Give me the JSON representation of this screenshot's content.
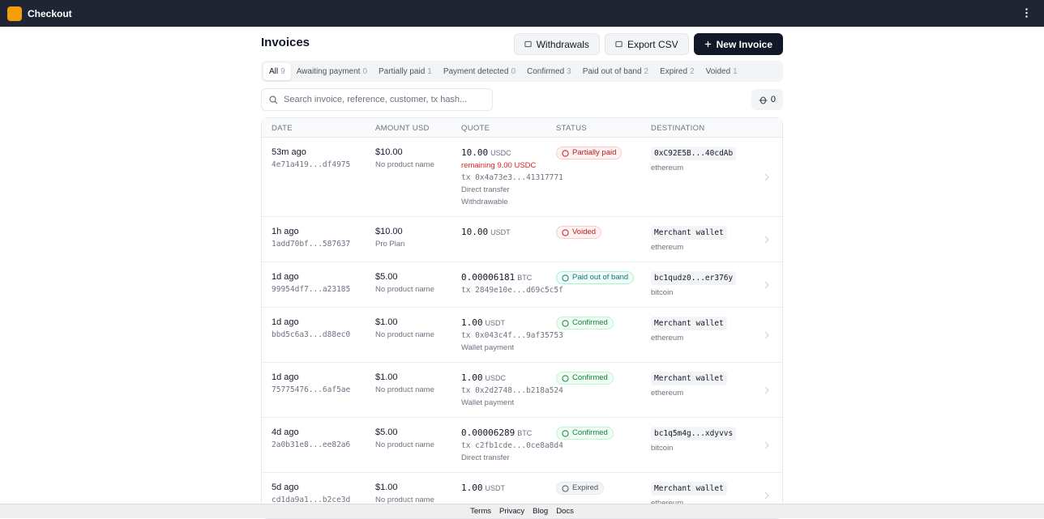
{
  "app": {
    "name": "Checkout"
  },
  "page": {
    "title": "Invoices"
  },
  "actions": [
    "Withdrawals",
    "Export CSV",
    "New Invoice"
  ],
  "tabs": [
    {
      "label": "All",
      "count": 9
    },
    {
      "label": "Awaiting payment",
      "count": 0
    },
    {
      "label": "Partially paid",
      "count": 1
    },
    {
      "label": "Payment detected",
      "count": 0
    },
    {
      "label": "Confirmed",
      "count": 3
    },
    {
      "label": "Paid out of band",
      "count": 2
    },
    {
      "label": "Expired",
      "count": 2
    },
    {
      "label": "Voided",
      "count": 1
    }
  ],
  "search": {
    "placeholder": "Search invoice, reference, customer, tx hash..."
  },
  "filter_count": 0,
  "table": {
    "columns": [
      "DATE",
      "AMOUNT USD",
      "QUOTE",
      "STATUS",
      "DESTINATION"
    ],
    "rows": [
      {
        "date": "53m ago",
        "id": "4e71a419...df4975",
        "amount": "$10.00",
        "product": "No product name",
        "quote": {
          "amount": "10.00",
          "currency": "USDC",
          "remaining": "remaining 9.00 USDC",
          "tx": "tx 0x4a73e3...41317771",
          "method": "Direct transfer",
          "note": "Withdrawable"
        },
        "status": "Partially paid",
        "destination": "0xC92E5B...40cdAb",
        "network": "ethereum"
      },
      {
        "date": "1h ago",
        "id": "1add70bf...587637",
        "amount": "$10.00",
        "product": "Pro Plan",
        "quote": {
          "amount": "10.00",
          "currency": "USDT"
        },
        "status": "Voided",
        "destination": "Merchant wallet",
        "network": "ethereum"
      },
      {
        "date": "1d ago",
        "id": "99954df7...a23185",
        "amount": "$5.00",
        "product": "No product name",
        "quote": {
          "amount": "0.00006181",
          "currency": "BTC",
          "tx": "tx 2849e10e...d69c5c5f"
        },
        "status": "Paid out of band",
        "destination": "bc1qudz0...er376y",
        "network": "bitcoin"
      },
      {
        "date": "1d ago",
        "id": "bbd5c6a3...d88ec0",
        "amount": "$1.00",
        "product": "No product name",
        "quote": {
          "amount": "1.00",
          "currency": "USDT",
          "tx": "tx 0x043c4f...9af35753",
          "method": "Wallet payment"
        },
        "status": "Confirmed",
        "destination": "Merchant wallet",
        "network": "ethereum"
      },
      {
        "date": "1d ago",
        "id": "75775476...6af5ae",
        "amount": "$1.00",
        "product": "No product name",
        "quote": {
          "amount": "1.00",
          "currency": "USDC",
          "tx": "tx 0x2d2748...b218a524",
          "method": "Wallet payment"
        },
        "status": "Confirmed",
        "destination": "Merchant wallet",
        "network": "ethereum"
      },
      {
        "date": "4d ago",
        "id": "2a0b31e8...ee82a6",
        "amount": "$5.00",
        "product": "No product name",
        "quote": {
          "amount": "0.00006289",
          "currency": "BTC",
          "tx": "tx c2fb1cde...0ce8a8d4",
          "method": "Direct transfer"
        },
        "status": "Confirmed",
        "destination": "bc1q5m4g...xdyvvs",
        "network": "bitcoin"
      },
      {
        "date": "5d ago",
        "id": "cd1da9a1...b2ce3d",
        "amount": "$1.00",
        "product": "No product name",
        "quote": {
          "amount": "1.00",
          "currency": "USDT"
        },
        "status": "Expired",
        "destination": "Merchant wallet",
        "network": "ethereum"
      }
    ]
  },
  "footer": {
    "links": [
      "Terms",
      "Privacy",
      "Blog",
      "Docs"
    ]
  }
}
